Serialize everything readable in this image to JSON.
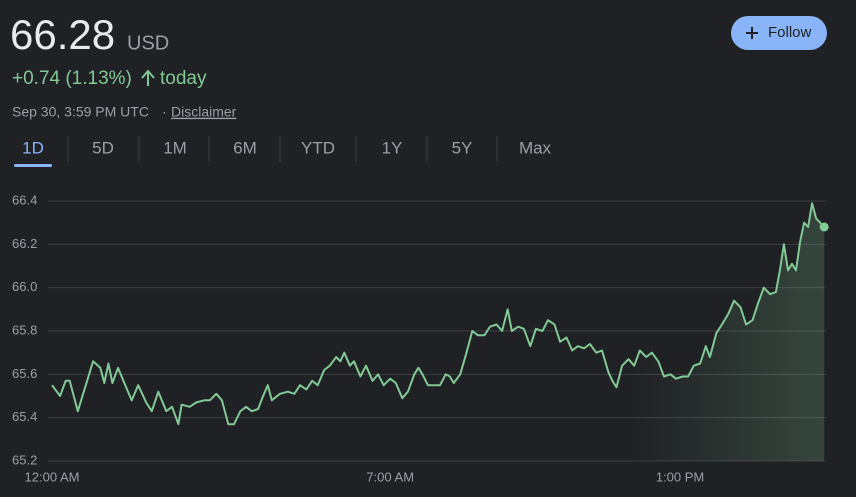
{
  "header": {
    "price": "66.28",
    "currency": "USD",
    "change": "+0.74 (1.13%)",
    "change_period": "today",
    "timestamp": "Sep 30, 3:59 PM UTC",
    "separator": "·",
    "disclaimer": "Disclaimer",
    "follow": "Follow"
  },
  "tabs": [
    "1D",
    "5D",
    "1M",
    "6M",
    "YTD",
    "1Y",
    "5Y",
    "Max"
  ],
  "active_tab": "1D",
  "chart_data": {
    "type": "line",
    "color": "#81c995",
    "x": [
      "00:00",
      "00:10",
      "00:17",
      "00:22",
      "00:32",
      "00:42",
      "00:51",
      "01:00",
      "01:05",
      "01:10",
      "01:15",
      "01:22",
      "01:32",
      "01:39",
      "01:47",
      "01:57",
      "02:04",
      "02:12",
      "02:22",
      "02:29",
      "02:37",
      "02:41",
      "02:51",
      "02:59",
      "03:09",
      "03:16",
      "03:24",
      "03:31",
      "03:39",
      "03:46",
      "03:54",
      "04:01",
      "04:08",
      "04:16",
      "04:21",
      "04:28",
      "04:33",
      "04:43",
      "04:53",
      "05:01",
      "05:08",
      "05:16",
      "05:23",
      "05:30",
      "05:38",
      "05:45",
      "05:53",
      "05:58",
      "06:03",
      "06:10",
      "06:15",
      "06:23",
      "06:30",
      "06:38",
      "06:45",
      "06:52",
      "07:00",
      "07:07",
      "07:15",
      "07:22",
      "07:30",
      "07:35",
      "07:40",
      "07:47",
      "07:55",
      "08:02",
      "08:09",
      "08:14",
      "08:19",
      "08:27",
      "08:34",
      "08:42",
      "08:49",
      "08:57",
      "09:04",
      "09:12",
      "09:19",
      "09:26",
      "09:31",
      "09:39",
      "09:46",
      "09:54",
      "10:01",
      "10:09",
      "10:16",
      "10:24",
      "10:31",
      "10:39",
      "10:46",
      "10:53",
      "11:01",
      "11:08",
      "11:16",
      "11:23",
      "11:31",
      "11:36",
      "11:41",
      "11:48",
      "11:56",
      "12:03",
      "12:10",
      "12:18",
      "12:25",
      "12:33",
      "12:40",
      "12:48",
      "12:55",
      "13:03",
      "13:10",
      "13:17",
      "13:25",
      "13:32",
      "13:37",
      "13:45",
      "13:52",
      "14:00",
      "14:07",
      "14:15",
      "14:22",
      "14:30",
      "14:37",
      "14:44",
      "14:52",
      "14:59",
      "15:04",
      "15:09",
      "15:14",
      "15:19",
      "15:24",
      "15:29",
      "15:34",
      "15:39",
      "15:44",
      "15:49",
      "15:59"
    ],
    "values": [
      65.55,
      65.5,
      65.57,
      65.57,
      65.43,
      65.55,
      65.66,
      65.63,
      65.56,
      65.65,
      65.56,
      65.63,
      65.54,
      65.48,
      65.55,
      65.47,
      65.43,
      65.52,
      65.43,
      65.45,
      65.37,
      65.46,
      65.45,
      65.47,
      65.48,
      65.48,
      65.51,
      65.48,
      65.37,
      65.37,
      65.43,
      65.45,
      65.43,
      65.44,
      65.49,
      65.55,
      65.48,
      65.51,
      65.52,
      65.51,
      65.55,
      65.53,
      65.57,
      65.55,
      65.62,
      65.64,
      65.68,
      65.66,
      65.7,
      65.64,
      65.66,
      65.59,
      65.64,
      65.57,
      65.6,
      65.55,
      65.58,
      65.56,
      65.49,
      65.52,
      65.6,
      65.63,
      65.6,
      65.55,
      65.55,
      65.55,
      65.6,
      65.59,
      65.56,
      65.6,
      65.69,
      65.8,
      65.78,
      65.78,
      65.82,
      65.83,
      65.8,
      65.9,
      65.8,
      65.82,
      65.81,
      65.73,
      65.81,
      65.8,
      65.85,
      65.83,
      65.75,
      65.77,
      65.71,
      65.73,
      65.72,
      65.74,
      65.7,
      65.71,
      65.61,
      65.57,
      65.54,
      65.64,
      65.67,
      65.64,
      65.71,
      65.68,
      65.7,
      65.66,
      65.59,
      65.6,
      65.58,
      65.59,
      65.59,
      65.64,
      65.65,
      65.73,
      65.68,
      65.79,
      65.83,
      65.88,
      65.94,
      65.91,
      65.83,
      65.85,
      65.93,
      66.0,
      65.97,
      65.98,
      66.08,
      66.2,
      66.08,
      66.11,
      66.08,
      66.21,
      66.3,
      66.28,
      66.39,
      66.32,
      66.28
    ],
    "xlim": [
      "00:00",
      "16:00"
    ],
    "xticks": [
      {
        "value": "00:00",
        "label": "12:00 AM"
      },
      {
        "value": "07:00",
        "label": "7:00 AM"
      },
      {
        "value": "13:00",
        "label": "1:00 PM"
      }
    ],
    "ylim": [
      65.2,
      66.4
    ],
    "yticks": [
      65.2,
      65.4,
      65.6,
      65.8,
      {
        "value": 66,
        "label": "66.0"
      },
      66.2,
      66.4
    ],
    "grid": true
  }
}
